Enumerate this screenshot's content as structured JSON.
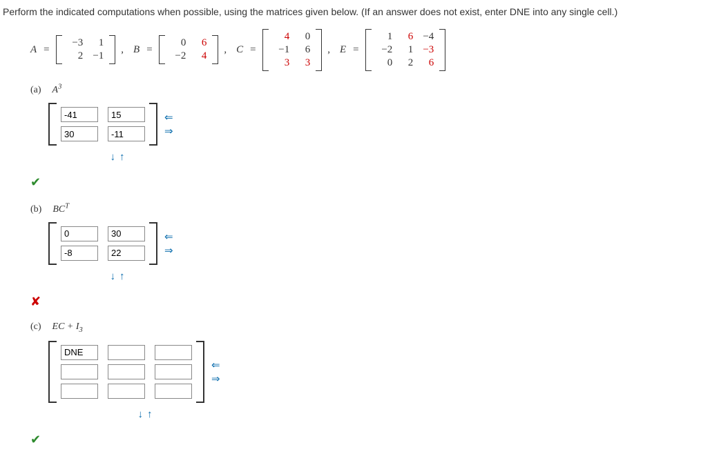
{
  "instruction": "Perform the indicated computations when possible, using the matrices given below. (If an answer does not exist, enter DNE into any single cell.)",
  "given": {
    "A": {
      "label": "A",
      "rows": [
        [
          "−3",
          "1"
        ],
        [
          "2",
          "−1"
        ]
      ]
    },
    "B": {
      "label": "B",
      "rows": [
        [
          "0",
          "6"
        ],
        [
          "−2",
          "4"
        ]
      ],
      "red": [
        [
          0,
          1
        ],
        [
          1,
          1
        ]
      ]
    },
    "C": {
      "label": "C",
      "rows": [
        [
          "4",
          "0"
        ],
        [
          "−1",
          "6"
        ],
        [
          "3",
          "3"
        ]
      ],
      "red": [
        [
          0,
          0
        ],
        [
          2,
          0
        ],
        [
          2,
          1
        ]
      ]
    },
    "E": {
      "label": "E",
      "rows": [
        [
          "1",
          "6",
          "−4"
        ],
        [
          "−2",
          "1",
          "−3"
        ],
        [
          "0",
          "2",
          "6"
        ]
      ],
      "red": [
        [
          0,
          1
        ],
        [
          1,
          2
        ],
        [
          2,
          2
        ]
      ]
    }
  },
  "parts": {
    "a": {
      "letter": "(a)",
      "expr_html": "A<sup>3</sup>",
      "rows": 2,
      "cols": 2,
      "values": [
        [
          "-41",
          "15"
        ],
        [
          "30",
          "-11"
        ]
      ],
      "mark": "check"
    },
    "b": {
      "letter": "(b)",
      "expr_html": "BC<sup class='T'>T</sup>",
      "rows": 2,
      "cols": 2,
      "values": [
        [
          "0",
          "30"
        ],
        [
          "-8",
          "22"
        ]
      ],
      "mark": "cross"
    },
    "c": {
      "letter": "(c)",
      "expr_html": "EC + I<sub>3</sub>",
      "rows": 3,
      "cols": 3,
      "values": [
        [
          "DNE",
          "",
          ""
        ],
        [
          "",
          "",
          ""
        ],
        [
          "",
          "",
          ""
        ]
      ],
      "mark": "check"
    }
  },
  "arrows": {
    "down": "↓",
    "up": "↑",
    "left": "⇐",
    "right": "⇒"
  }
}
